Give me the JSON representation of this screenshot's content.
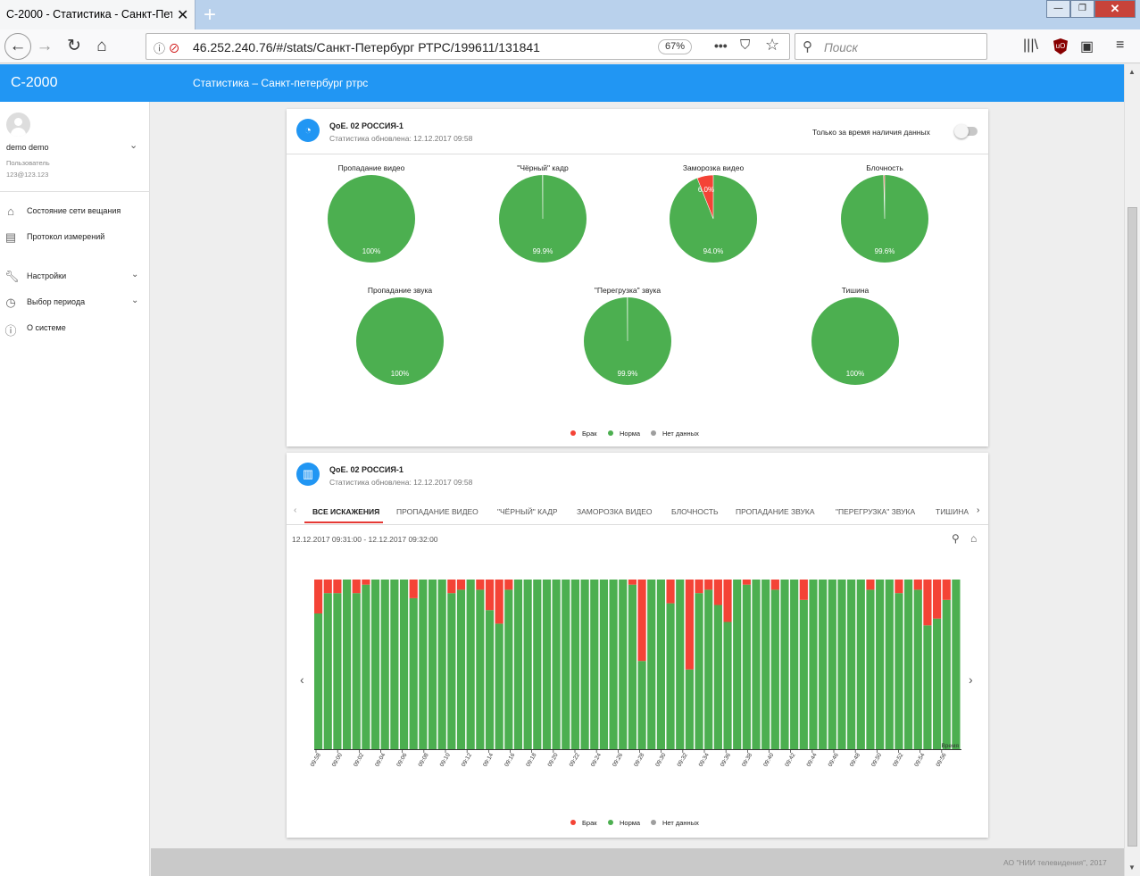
{
  "browser": {
    "tab_title": "С-2000 - Статистика - Санкт-Петер",
    "url": "46.252.240.76/#/stats/Санкт-Петербург РТРС/199611/131841",
    "zoom": "67%",
    "search_placeholder": "Поиск"
  },
  "app": {
    "brand": "С-2000",
    "header_title": "Статистика  –  Санкт-петербург ртрс"
  },
  "user": {
    "name": "demo demo",
    "role": "Пользователь",
    "email": "123@123.123"
  },
  "menu": [
    {
      "label": "Состояние сети вещания",
      "icon": "home-icon",
      "has_chevron": false
    },
    {
      "label": "Протокол измерений",
      "icon": "clipboard-icon",
      "has_chevron": false
    },
    {
      "label": "Настройки",
      "icon": "wrench-icon",
      "has_chevron": true
    },
    {
      "label": "Выбор периода",
      "icon": "clock-icon",
      "has_chevron": true
    },
    {
      "label": "О системе",
      "icon": "info-icon",
      "has_chevron": false
    }
  ],
  "colors": {
    "brak": "#f44336",
    "norma": "#4caf50",
    "no_data": "#9e9e9e",
    "accent": "#2196f3"
  },
  "pie_card": {
    "title": "QoE. 02 РОССИЯ-1",
    "subtitle": "Статистика обновлена: 12.12.2017 09:58",
    "switch_label": "Только за время наличия данных",
    "switch_on": false,
    "pies": [
      {
        "title": "Пропадание видео",
        "norma": 100,
        "brak": 0,
        "norma_label": "100%",
        "brak_label": ""
      },
      {
        "title": "\"Чёрный\" кадр",
        "norma": 99.9,
        "brak": 0.1,
        "norma_label": "99.9%",
        "brak_label": ""
      },
      {
        "title": "Заморозка видео",
        "norma": 94.0,
        "brak": 6.0,
        "norma_label": "94.0%",
        "brak_label": "6.0%"
      },
      {
        "title": "Блочность",
        "norma": 99.6,
        "brak": 0.4,
        "norma_label": "99.6%",
        "brak_label": ""
      },
      {
        "title": "Пропадание звука",
        "norma": 100,
        "brak": 0,
        "norma_label": "100%",
        "brak_label": ""
      },
      {
        "title": "\"Перегрузка\" звука",
        "norma": 99.9,
        "brak": 0.1,
        "norma_label": "99.9%",
        "brak_label": ""
      },
      {
        "title": "Тишина",
        "norma": 100,
        "brak": 0,
        "norma_label": "100%",
        "brak_label": ""
      }
    ]
  },
  "legend": {
    "brak": "Брак",
    "norma": "Норма",
    "no_data": "Нет данных"
  },
  "bar_card": {
    "title": "QoE. 02 РОССИЯ-1",
    "subtitle": "Статистика обновлена: 12.12.2017 09:58",
    "tabs": [
      "ВСЕ ИСКАЖЕНИЯ",
      "ПРОПАДАНИЕ ВИДЕО",
      "\"ЧЁРНЫЙ\" КАДР",
      "ЗАМОРОЗКА ВИДЕО",
      "БЛОЧНОСТЬ",
      "ПРОПАДАНИЕ ЗВУКА",
      "\"ПЕРЕГРУЗКА\" ЗВУКА",
      "ТИШИНА"
    ],
    "active_tab": 0,
    "range": "12.12.2017 09:31:00 - 12.12.2017 09:32:00"
  },
  "chart_data": {
    "type": "bar",
    "stacked": true,
    "x_label": "Время",
    "tick_labels": [
      "09:58",
      "09:00",
      "09:02",
      "09:04",
      "09:06",
      "09:08",
      "09:10",
      "09:12",
      "09:14",
      "09:16",
      "09:18",
      "09:20",
      "09:22",
      "09:24",
      "09:26",
      "09:28",
      "09:30",
      "09:32",
      "09:34",
      "09:36",
      "09:38",
      "09:40",
      "09:42",
      "09:44",
      "09:46",
      "09:48",
      "09:50",
      "09:52",
      "09:54",
      "09:56"
    ],
    "series": [
      {
        "name": "Брак",
        "color": "#f44336"
      },
      {
        "name": "Норма",
        "color": "#4caf50"
      }
    ],
    "brak_percent": [
      20,
      8,
      8,
      0,
      8,
      3,
      0,
      0,
      0,
      0,
      11,
      0,
      0,
      0,
      8,
      6,
      0,
      6,
      18,
      26,
      6,
      0,
      0,
      0,
      0,
      0,
      0,
      0,
      0,
      0,
      0,
      0,
      0,
      3,
      48,
      0,
      0,
      14,
      0,
      53,
      8,
      6,
      15,
      25,
      0,
      3,
      0,
      0,
      6,
      0,
      0,
      12,
      0,
      0,
      0,
      0,
      0,
      0,
      6,
      0,
      0,
      8,
      0,
      6,
      27,
      23,
      12,
      0
    ],
    "ylim": [
      0,
      100
    ]
  },
  "footer": {
    "text": "АО \"НИИ телевидения\", 2017"
  }
}
